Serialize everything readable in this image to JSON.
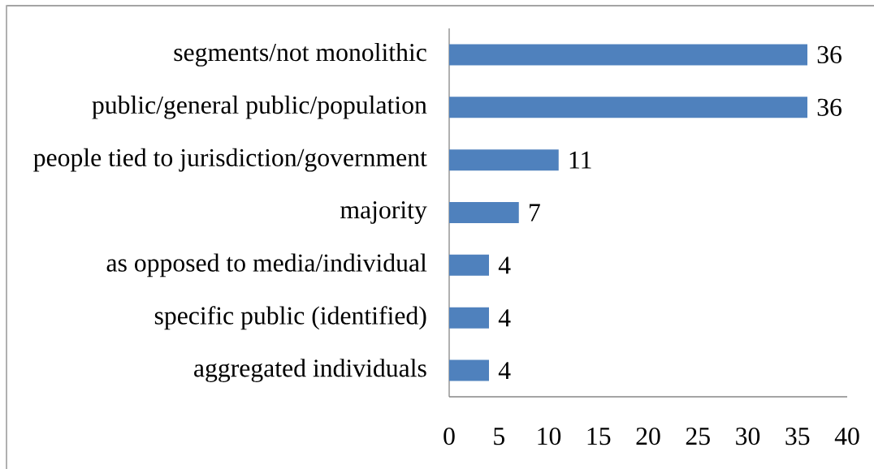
{
  "chart_data": {
    "type": "bar",
    "orientation": "horizontal",
    "categories": [
      "segments/not monolithic",
      "public/general public/population",
      "people tied to jurisdiction/government",
      "majority",
      "as opposed to media/individual",
      "specific public (identified)",
      "aggregated individuals"
    ],
    "values": [
      36,
      36,
      11,
      7,
      4,
      4,
      4
    ],
    "color": "#4f81bd",
    "xlim": [
      0,
      40
    ],
    "xticks": [
      0,
      5,
      10,
      15,
      20,
      25,
      30,
      35,
      40
    ],
    "data_labels": true
  }
}
